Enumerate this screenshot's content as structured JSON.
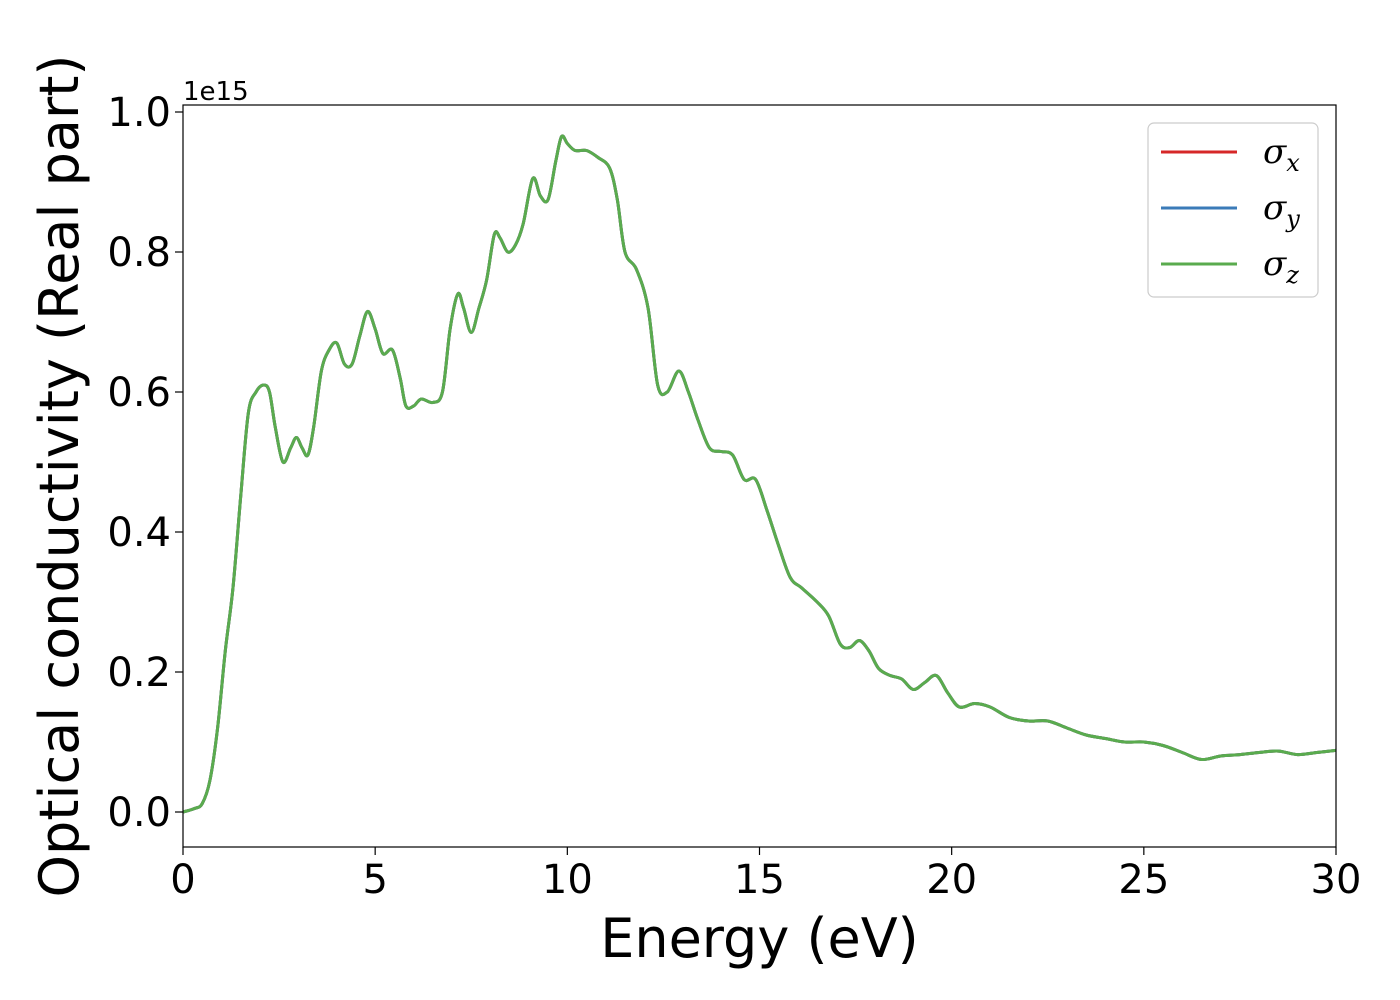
{
  "chart_data": {
    "type": "line",
    "xlabel": "Energy (eV)",
    "ylabel": "Optical conductivity (Real part)",
    "y_offset_text": "1e15",
    "y_scale_factor": 1000000000000000.0,
    "xlim": [
      0,
      30
    ],
    "ylim": [
      -0.05,
      1.01
    ],
    "x_ticks": [
      0,
      5,
      10,
      15,
      20,
      25,
      30
    ],
    "x_tick_labels": [
      "0",
      "5",
      "10",
      "15",
      "20",
      "25",
      "30"
    ],
    "y_ticks": [
      0.0,
      0.2,
      0.4,
      0.6,
      0.8,
      1.0
    ],
    "y_tick_labels": [
      "0.0",
      "0.2",
      "0.4",
      "0.6",
      "0.8",
      "1.0"
    ],
    "grid": false,
    "legend_position": "top-right",
    "x": [
      0,
      0.3,
      0.5,
      0.7,
      0.9,
      1.1,
      1.3,
      1.5,
      1.7,
      1.9,
      2.1,
      2.25,
      2.4,
      2.6,
      2.8,
      2.95,
      3.1,
      3.25,
      3.4,
      3.6,
      3.8,
      4.0,
      4.2,
      4.4,
      4.6,
      4.8,
      5.0,
      5.2,
      5.45,
      5.65,
      5.8,
      6.0,
      6.2,
      6.5,
      6.75,
      6.95,
      7.15,
      7.3,
      7.5,
      7.7,
      7.9,
      8.1,
      8.25,
      8.45,
      8.65,
      8.85,
      9.1,
      9.3,
      9.5,
      9.7,
      9.85,
      10.0,
      10.2,
      10.5,
      10.8,
      11.1,
      11.3,
      11.5,
      11.8,
      12.1,
      12.35,
      12.6,
      12.9,
      13.15,
      13.4,
      13.7,
      14.0,
      14.3,
      14.6,
      14.9,
      15.2,
      15.5,
      15.8,
      16.1,
      16.5,
      16.8,
      17.1,
      17.35,
      17.6,
      17.85,
      18.1,
      18.4,
      18.7,
      19.0,
      19.3,
      19.6,
      19.9,
      20.2,
      20.6,
      21.0,
      21.5,
      22.0,
      22.5,
      23.0,
      23.5,
      24.0,
      24.5,
      25.0,
      25.5,
      26.0,
      26.5,
      27.0,
      27.5,
      28.0,
      28.5,
      29.0,
      29.5,
      30.0
    ],
    "series": [
      {
        "name": "σ_x",
        "label_main": "σ",
        "label_sub": "x",
        "color": "#d62728",
        "values": [
          0.0,
          0.005,
          0.012,
          0.045,
          0.12,
          0.23,
          0.32,
          0.45,
          0.57,
          0.6,
          0.61,
          0.6,
          0.55,
          0.5,
          0.52,
          0.535,
          0.52,
          0.51,
          0.55,
          0.63,
          0.66,
          0.67,
          0.64,
          0.64,
          0.68,
          0.715,
          0.69,
          0.655,
          0.66,
          0.62,
          0.58,
          0.58,
          0.59,
          0.585,
          0.6,
          0.69,
          0.74,
          0.72,
          0.685,
          0.72,
          0.76,
          0.825,
          0.82,
          0.8,
          0.81,
          0.84,
          0.905,
          0.88,
          0.875,
          0.93,
          0.965,
          0.955,
          0.945,
          0.945,
          0.935,
          0.92,
          0.875,
          0.8,
          0.775,
          0.72,
          0.61,
          0.6,
          0.63,
          0.6,
          0.56,
          0.52,
          0.515,
          0.51,
          0.475,
          0.475,
          0.43,
          0.38,
          0.335,
          0.32,
          0.3,
          0.28,
          0.24,
          0.235,
          0.245,
          0.23,
          0.205,
          0.195,
          0.19,
          0.175,
          0.185,
          0.195,
          0.17,
          0.15,
          0.155,
          0.15,
          0.135,
          0.13,
          0.13,
          0.12,
          0.11,
          0.105,
          0.1,
          0.1,
          0.095,
          0.085,
          0.075,
          0.08,
          0.082,
          0.085,
          0.087,
          0.082,
          0.085,
          0.088
        ]
      },
      {
        "name": "σ_y",
        "label_main": "σ",
        "label_sub": "y",
        "color": "#3b7bb8",
        "values": [
          0.0,
          0.005,
          0.012,
          0.045,
          0.12,
          0.23,
          0.32,
          0.45,
          0.57,
          0.6,
          0.61,
          0.6,
          0.55,
          0.5,
          0.52,
          0.535,
          0.52,
          0.51,
          0.55,
          0.63,
          0.66,
          0.67,
          0.64,
          0.64,
          0.68,
          0.715,
          0.69,
          0.655,
          0.66,
          0.62,
          0.58,
          0.58,
          0.59,
          0.585,
          0.6,
          0.69,
          0.74,
          0.72,
          0.685,
          0.72,
          0.76,
          0.825,
          0.82,
          0.8,
          0.81,
          0.84,
          0.905,
          0.88,
          0.875,
          0.93,
          0.965,
          0.955,
          0.945,
          0.945,
          0.935,
          0.92,
          0.875,
          0.8,
          0.775,
          0.72,
          0.61,
          0.6,
          0.63,
          0.6,
          0.56,
          0.52,
          0.515,
          0.51,
          0.475,
          0.475,
          0.43,
          0.38,
          0.335,
          0.32,
          0.3,
          0.28,
          0.24,
          0.235,
          0.245,
          0.23,
          0.205,
          0.195,
          0.19,
          0.175,
          0.185,
          0.195,
          0.17,
          0.15,
          0.155,
          0.15,
          0.135,
          0.13,
          0.13,
          0.12,
          0.11,
          0.105,
          0.1,
          0.1,
          0.095,
          0.085,
          0.075,
          0.08,
          0.082,
          0.085,
          0.087,
          0.082,
          0.085,
          0.088
        ]
      },
      {
        "name": "σ_z",
        "label_main": "σ",
        "label_sub": "z",
        "color": "#5aab4e",
        "values": [
          0.0,
          0.005,
          0.012,
          0.045,
          0.12,
          0.23,
          0.32,
          0.45,
          0.57,
          0.6,
          0.61,
          0.6,
          0.55,
          0.5,
          0.52,
          0.535,
          0.52,
          0.51,
          0.55,
          0.63,
          0.66,
          0.67,
          0.64,
          0.64,
          0.68,
          0.715,
          0.69,
          0.655,
          0.66,
          0.62,
          0.58,
          0.58,
          0.59,
          0.585,
          0.6,
          0.69,
          0.74,
          0.72,
          0.685,
          0.72,
          0.76,
          0.825,
          0.82,
          0.8,
          0.81,
          0.84,
          0.905,
          0.88,
          0.875,
          0.93,
          0.965,
          0.955,
          0.945,
          0.945,
          0.935,
          0.92,
          0.875,
          0.8,
          0.775,
          0.72,
          0.61,
          0.6,
          0.63,
          0.6,
          0.56,
          0.52,
          0.515,
          0.51,
          0.475,
          0.475,
          0.43,
          0.38,
          0.335,
          0.32,
          0.3,
          0.28,
          0.24,
          0.235,
          0.245,
          0.23,
          0.205,
          0.195,
          0.19,
          0.175,
          0.185,
          0.195,
          0.17,
          0.15,
          0.155,
          0.15,
          0.135,
          0.13,
          0.13,
          0.12,
          0.11,
          0.105,
          0.1,
          0.1,
          0.095,
          0.085,
          0.075,
          0.08,
          0.082,
          0.085,
          0.087,
          0.082,
          0.085,
          0.088
        ]
      }
    ]
  }
}
